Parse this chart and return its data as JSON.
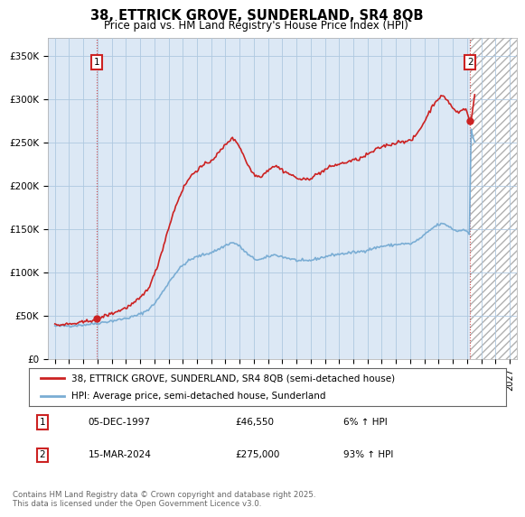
{
  "title": "38, ETTRICK GROVE, SUNDERLAND, SR4 8QB",
  "subtitle": "Price paid vs. HM Land Registry's House Price Index (HPI)",
  "ylim": [
    0,
    370000
  ],
  "yticks": [
    0,
    50000,
    100000,
    150000,
    200000,
    250000,
    300000,
    350000
  ],
  "ytick_labels": [
    "£0",
    "£50K",
    "£100K",
    "£150K",
    "£200K",
    "£250K",
    "£300K",
    "£350K"
  ],
  "xlim_start": 1994.5,
  "xlim_end": 2027.5,
  "marker1_x": 1997.92,
  "marker1_y": 46550,
  "marker2_x": 2024.21,
  "marker2_y": 275000,
  "label1_date": "05-DEC-1997",
  "label1_price": "£46,550",
  "label1_hpi": "6% ↑ HPI",
  "label2_date": "15-MAR-2024",
  "label2_price": "£275,000",
  "label2_hpi": "93% ↑ HPI",
  "legend_line1": "38, ETTRICK GROVE, SUNDERLAND, SR4 8QB (semi-detached house)",
  "legend_line2": "HPI: Average price, semi-detached house, Sunderland",
  "footer": "Contains HM Land Registry data © Crown copyright and database right 2025.\nThis data is licensed under the Open Government Licence v3.0.",
  "hpi_color": "#7aadd4",
  "price_color": "#cc2222",
  "plot_bg_color": "#dce8f5",
  "background_color": "#ffffff",
  "grid_color": "#aec8e0",
  "annotation_box_color": "#cc2222",
  "hatch_area_color": "#c8c8c8"
}
